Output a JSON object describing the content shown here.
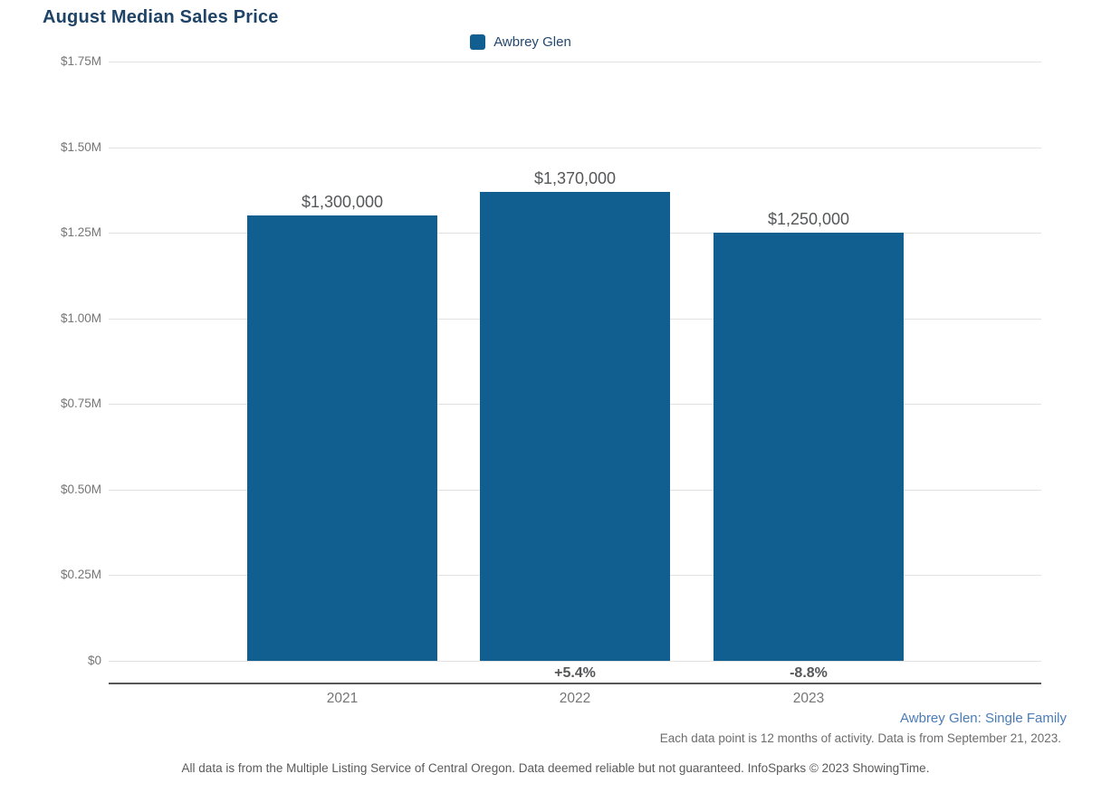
{
  "header": {
    "title": "August Median Sales Price"
  },
  "legend": {
    "items": [
      {
        "label": "Awbrey Glen",
        "color": "#115e90"
      }
    ]
  },
  "chart_data": {
    "type": "bar",
    "title": "August Median Sales Price",
    "categories": [
      "2021",
      "2022",
      "2023"
    ],
    "series": [
      {
        "name": "Awbrey Glen",
        "values": [
          1300000,
          1370000,
          1250000
        ]
      }
    ],
    "value_labels": [
      "$1,300,000",
      "$1,370,000",
      "$1,250,000"
    ],
    "change_labels": [
      "",
      "+5.4%",
      "-8.8%"
    ],
    "ylim": [
      0,
      1750000
    ],
    "y_ticks": [
      {
        "value": 0,
        "label": "$0"
      },
      {
        "value": 250000,
        "label": "$0.25M"
      },
      {
        "value": 500000,
        "label": "$0.50M"
      },
      {
        "value": 750000,
        "label": "$0.75M"
      },
      {
        "value": 1000000,
        "label": "$1.00M"
      },
      {
        "value": 1250000,
        "label": "$1.25M"
      },
      {
        "value": 1500000,
        "label": "$1.50M"
      },
      {
        "value": 1750000,
        "label": "$1.75M"
      }
    ],
    "grid": true,
    "legend_position": "top-center",
    "bar_color": "#115e90"
  },
  "footer": {
    "series_note": "Awbrey Glen: Single Family",
    "data_note": "Each data point is 12 months of activity. Data is from September 21, 2023.",
    "disclaimer": "All data is from the Multiple Listing Service of Central Oregon. Data deemed reliable but not guaranteed. InfoSparks © 2023 ShowingTime."
  },
  "colors": {
    "bar": "#115e90",
    "title": "#1f4468",
    "legend_text": "#24486e",
    "axis_label": "#757575",
    "value_label": "#555759",
    "gridline": "#e2e2e2",
    "axis_line": "#58585a",
    "link_blue": "#4a7cb7"
  }
}
